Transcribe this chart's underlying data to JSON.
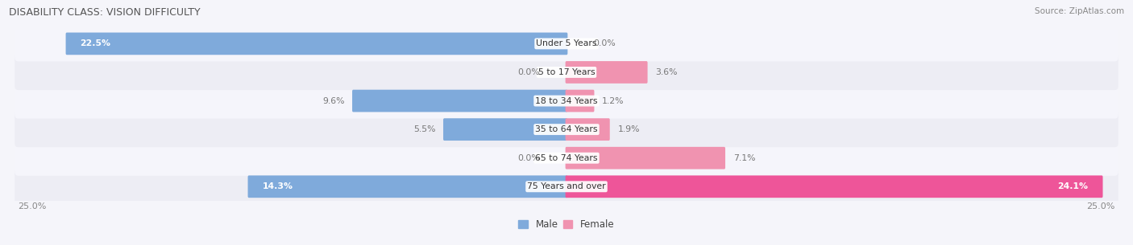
{
  "title": "DISABILITY CLASS: VISION DIFFICULTY",
  "source": "Source: ZipAtlas.com",
  "categories": [
    "Under 5 Years",
    "5 to 17 Years",
    "18 to 34 Years",
    "35 to 64 Years",
    "65 to 74 Years",
    "75 Years and over"
  ],
  "male_values": [
    22.5,
    0.0,
    9.6,
    5.5,
    0.0,
    14.3
  ],
  "female_values": [
    0.0,
    3.6,
    1.2,
    1.9,
    7.1,
    24.1
  ],
  "max_val": 25.0,
  "male_color": "#7faadb",
  "female_color": "#f093b0",
  "female_color_last": "#ee5599",
  "row_bg_odd": "#ededf4",
  "row_bg_even": "#f5f5fb",
  "fig_bg": "#f5f5fa",
  "title_color": "#555555",
  "source_color": "#888888",
  "label_fg_white": "#ffffff",
  "label_fg_dark": "#777777",
  "label_fg_orange": "#cc8844",
  "legend_male_color": "#7faadb",
  "legend_female_color": "#f093b0"
}
